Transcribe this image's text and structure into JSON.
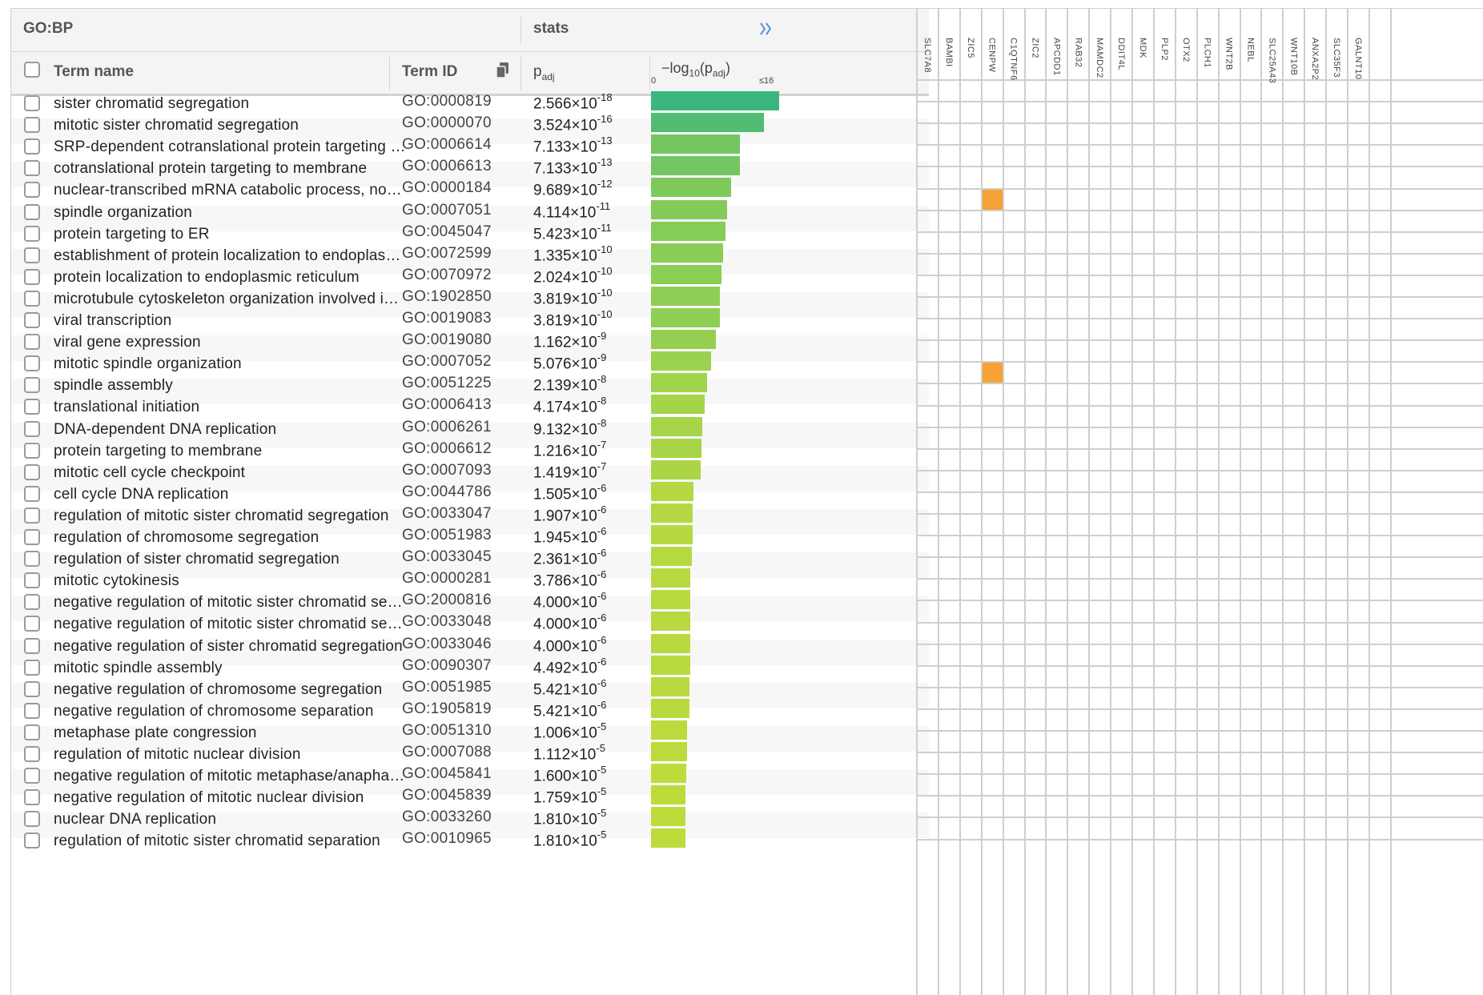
{
  "header": {
    "source": "GO:BP",
    "stats": "stats",
    "expand_icon": "double-chevron-right-icon",
    "col_term_name": "Term name",
    "col_term_id": "Term ID",
    "col_padj": "p",
    "col_padj_sub": "adj",
    "col_log": "−log",
    "col_log_sub": "10",
    "col_log_inner": "(p",
    "col_log_inner_sub": "adj",
    "col_log_close": ")",
    "scale_min": "0",
    "scale_max": "≤16"
  },
  "genes": [
    "SLC7A8",
    "BAMBI",
    "ZIC5",
    "CENPW",
    "C1QTNF6",
    "ZIC2",
    "APCDD1",
    "RAB32",
    "MAMDC2",
    "DDIT4L",
    "MDK",
    "PLP2",
    "OTX2",
    "PLCH1",
    "WNT2B",
    "NEBL",
    "SLC25A43",
    "WNT10B",
    "ANXA2P2",
    "SLC35F3",
    "GALNT10"
  ],
  "rows": [
    {
      "name": "sister chromatid segregation",
      "id": "GO:0000819",
      "p_base": "2.566×10",
      "p_exp": "-18",
      "neglog10": 17.59
    },
    {
      "name": "mitotic sister chromatid segregation",
      "id": "GO:0000070",
      "p_base": "3.524×10",
      "p_exp": "-16",
      "neglog10": 15.45
    },
    {
      "name": "SRP-dependent cotranslational protein targeting …",
      "id": "GO:0006614",
      "p_base": "7.133×10",
      "p_exp": "-13",
      "neglog10": 12.15
    },
    {
      "name": "cotranslational protein targeting to membrane",
      "id": "GO:0006613",
      "p_base": "7.133×10",
      "p_exp": "-13",
      "neglog10": 12.15
    },
    {
      "name": "nuclear-transcribed mRNA catabolic process, no…",
      "id": "GO:0000184",
      "p_base": "9.689×10",
      "p_exp": "-12",
      "neglog10": 11.01
    },
    {
      "name": "spindle organization",
      "id": "GO:0007051",
      "p_base": "4.114×10",
      "p_exp": "-11",
      "neglog10": 10.39
    },
    {
      "name": "protein targeting to ER",
      "id": "GO:0045047",
      "p_base": "5.423×10",
      "p_exp": "-11",
      "neglog10": 10.27
    },
    {
      "name": "establishment of protein localization to endoplas…",
      "id": "GO:0072599",
      "p_base": "1.335×10",
      "p_exp": "-10",
      "neglog10": 9.87
    },
    {
      "name": "protein localization to endoplasmic reticulum",
      "id": "GO:0070972",
      "p_base": "2.024×10",
      "p_exp": "-10",
      "neglog10": 9.69
    },
    {
      "name": "microtubule cytoskeleton organization involved i…",
      "id": "GO:1902850",
      "p_base": "3.819×10",
      "p_exp": "-10",
      "neglog10": 9.42
    },
    {
      "name": "viral transcription",
      "id": "GO:0019083",
      "p_base": "3.819×10",
      "p_exp": "-10",
      "neglog10": 9.42
    },
    {
      "name": "viral gene expression",
      "id": "GO:0019080",
      "p_base": "1.162×10",
      "p_exp": "-9",
      "neglog10": 8.93
    },
    {
      "name": "mitotic spindle organization",
      "id": "GO:0007052",
      "p_base": "5.076×10",
      "p_exp": "-9",
      "neglog10": 8.29
    },
    {
      "name": "spindle assembly",
      "id": "GO:0051225",
      "p_base": "2.139×10",
      "p_exp": "-8",
      "neglog10": 7.67
    },
    {
      "name": "translational initiation",
      "id": "GO:0006413",
      "p_base": "4.174×10",
      "p_exp": "-8",
      "neglog10": 7.38
    },
    {
      "name": "DNA-dependent DNA replication",
      "id": "GO:0006261",
      "p_base": "9.132×10",
      "p_exp": "-8",
      "neglog10": 7.04
    },
    {
      "name": "protein targeting to membrane",
      "id": "GO:0006612",
      "p_base": "1.216×10",
      "p_exp": "-7",
      "neglog10": 6.92
    },
    {
      "name": "mitotic cell cycle checkpoint",
      "id": "GO:0007093",
      "p_base": "1.419×10",
      "p_exp": "-7",
      "neglog10": 6.85
    },
    {
      "name": "cell cycle DNA replication",
      "id": "GO:0044786",
      "p_base": "1.505×10",
      "p_exp": "-6",
      "neglog10": 5.82
    },
    {
      "name": "regulation of mitotic sister chromatid segregation",
      "id": "GO:0033047",
      "p_base": "1.907×10",
      "p_exp": "-6",
      "neglog10": 5.72
    },
    {
      "name": "regulation of chromosome segregation",
      "id": "GO:0051983",
      "p_base": "1.945×10",
      "p_exp": "-6",
      "neglog10": 5.71
    },
    {
      "name": "regulation of sister chromatid segregation",
      "id": "GO:0033045",
      "p_base": "2.361×10",
      "p_exp": "-6",
      "neglog10": 5.63
    },
    {
      "name": "mitotic cytokinesis",
      "id": "GO:0000281",
      "p_base": "3.786×10",
      "p_exp": "-6",
      "neglog10": 5.42
    },
    {
      "name": "negative regulation of mitotic sister chromatid se…",
      "id": "GO:2000816",
      "p_base": "4.000×10",
      "p_exp": "-6",
      "neglog10": 5.4
    },
    {
      "name": "negative regulation of mitotic sister chromatid se…",
      "id": "GO:0033048",
      "p_base": "4.000×10",
      "p_exp": "-6",
      "neglog10": 5.4
    },
    {
      "name": "negative regulation of sister chromatid segregation",
      "id": "GO:0033046",
      "p_base": "4.000×10",
      "p_exp": "-6",
      "neglog10": 5.4
    },
    {
      "name": "mitotic spindle assembly",
      "id": "GO:0090307",
      "p_base": "4.492×10",
      "p_exp": "-6",
      "neglog10": 5.35
    },
    {
      "name": "negative regulation of chromosome segregation",
      "id": "GO:0051985",
      "p_base": "5.421×10",
      "p_exp": "-6",
      "neglog10": 5.27
    },
    {
      "name": "negative regulation of chromosome separation",
      "id": "GO:1905819",
      "p_base": "5.421×10",
      "p_exp": "-6",
      "neglog10": 5.27
    },
    {
      "name": "metaphase plate congression",
      "id": "GO:0051310",
      "p_base": "1.006×10",
      "p_exp": "-5",
      "neglog10": 5.0
    },
    {
      "name": "regulation of mitotic nuclear division",
      "id": "GO:0007088",
      "p_base": "1.112×10",
      "p_exp": "-5",
      "neglog10": 4.95
    },
    {
      "name": "negative regulation of mitotic metaphase/anapha…",
      "id": "GO:0045841",
      "p_base": "1.600×10",
      "p_exp": "-5",
      "neglog10": 4.8
    },
    {
      "name": "negative regulation of mitotic nuclear division",
      "id": "GO:0045839",
      "p_base": "1.759×10",
      "p_exp": "-5",
      "neglog10": 4.75
    },
    {
      "name": "nuclear DNA replication",
      "id": "GO:0033260",
      "p_base": "1.810×10",
      "p_exp": "-5",
      "neglog10": 4.74
    },
    {
      "name": "regulation of mitotic sister chromatid separation",
      "id": "GO:0010965",
      "p_base": "1.810×10",
      "p_exp": "-5",
      "neglog10": 4.74
    }
  ],
  "highlights": [
    {
      "row": 5,
      "gene": "CENPW",
      "color": "#f6a234"
    },
    {
      "row": 13,
      "gene": "CENPW",
      "color": "#f6a234"
    }
  ],
  "colors": {
    "bar_high": "#3bb77e",
    "bar_low": "#c2dc3a",
    "highlight": "#f6a234"
  }
}
